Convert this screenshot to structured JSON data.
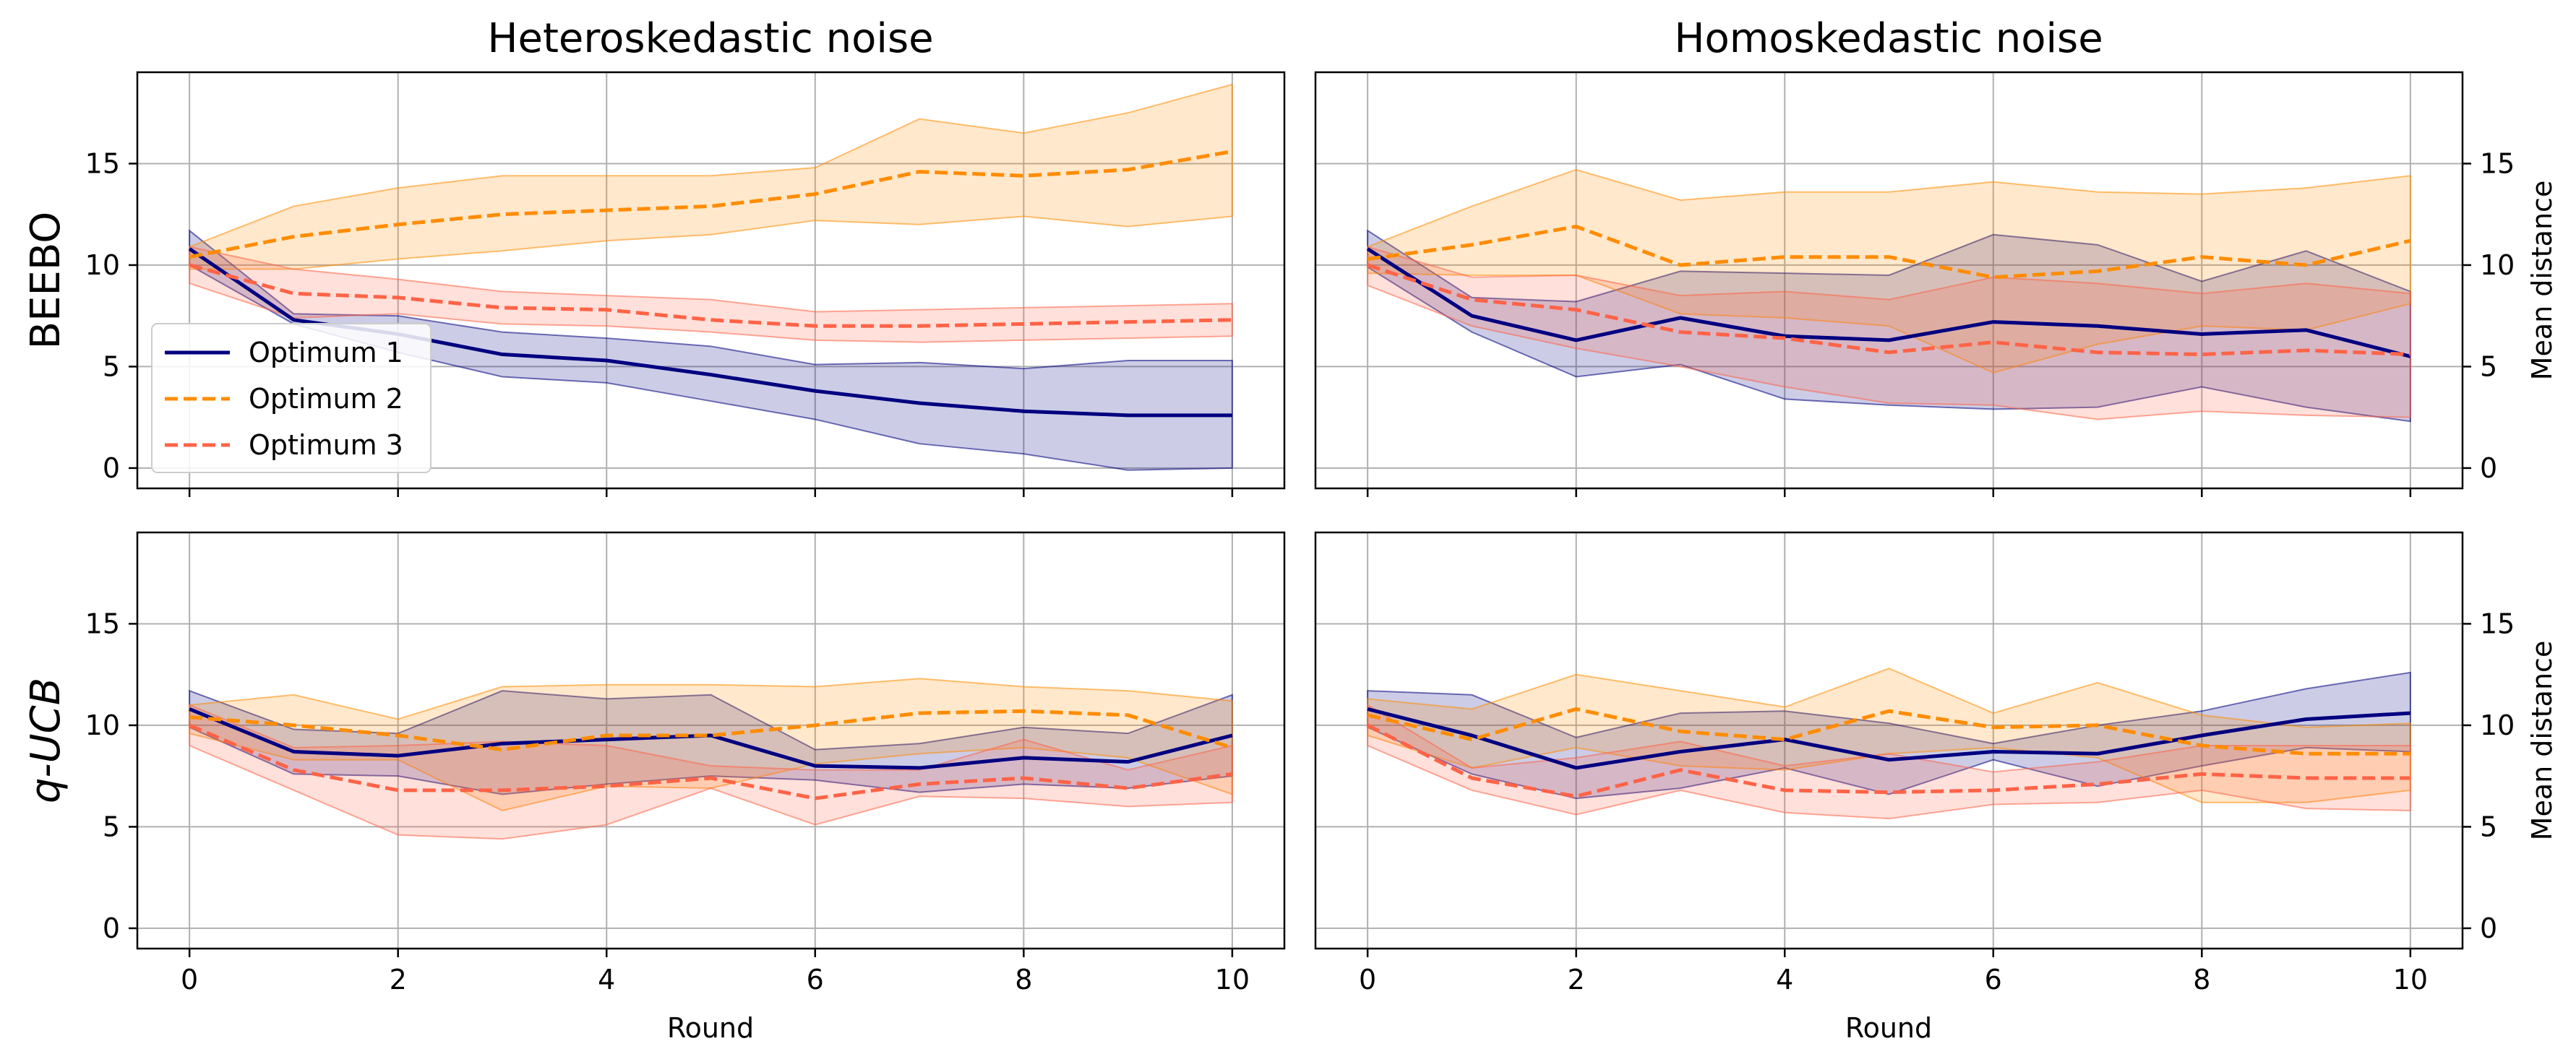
{
  "chart_data": {
    "type": "line",
    "x": [
      0,
      1,
      2,
      3,
      4,
      5,
      6,
      7,
      8,
      9,
      10
    ],
    "xlabel": "Round",
    "ylabel": "Mean distance",
    "xlim": [
      -0.5,
      10.5
    ],
    "ylim": [
      -1,
      19.5
    ],
    "xticks": [
      0,
      2,
      4,
      6,
      8,
      10
    ],
    "yticks": [
      0,
      5,
      10,
      15
    ],
    "grid": true,
    "legend": {
      "location": "lower-left of top-left panel",
      "entries": [
        "Optimum 1",
        "Optimum 2",
        "Optimum 3"
      ]
    },
    "series_style": [
      {
        "name": "Optimum 1",
        "color": "#000080",
        "dash": "solid"
      },
      {
        "name": "Optimum 2",
        "color": "#ff8c00",
        "dash": "dashed"
      },
      {
        "name": "Optimum 3",
        "color": "#ff6347",
        "dash": "dashed"
      }
    ],
    "column_titles": [
      "Heteroskedastic noise",
      "Homoskedastic noise"
    ],
    "row_labels": [
      "BEEBO",
      "q-UCB"
    ],
    "panels": [
      {
        "row": "BEEBO",
        "column": "Heteroskedastic noise",
        "series": [
          {
            "name": "Optimum 1",
            "mean": [
              10.8,
              7.3,
              6.6,
              5.6,
              5.3,
              4.6,
              3.8,
              3.2,
              2.8,
              2.6,
              2.6
            ],
            "lower": [
              10.0,
              7.1,
              5.7,
              4.5,
              4.2,
              3.3,
              2.4,
              1.2,
              0.7,
              -0.1,
              0.0
            ],
            "upper": [
              11.7,
              7.6,
              7.5,
              6.7,
              6.4,
              6.0,
              5.1,
              5.2,
              4.9,
              5.3,
              5.3
            ]
          },
          {
            "name": "Optimum 2",
            "mean": [
              10.4,
              11.4,
              12.0,
              12.5,
              12.7,
              12.9,
              13.5,
              14.6,
              14.4,
              14.7,
              15.6
            ],
            "lower": [
              9.8,
              9.8,
              10.3,
              10.7,
              11.2,
              11.5,
              12.2,
              12.0,
              12.4,
              11.9,
              12.4
            ],
            "upper": [
              10.9,
              12.9,
              13.8,
              14.4,
              14.4,
              14.4,
              14.8,
              17.2,
              16.5,
              17.5,
              18.9
            ]
          },
          {
            "name": "Optimum 3",
            "mean": [
              10.0,
              8.6,
              8.4,
              7.9,
              7.8,
              7.3,
              7.0,
              7.0,
              7.1,
              7.2,
              7.3
            ],
            "lower": [
              9.1,
              7.4,
              7.6,
              7.1,
              7.0,
              6.7,
              6.3,
              6.2,
              6.3,
              6.4,
              6.5
            ],
            "upper": [
              10.9,
              9.8,
              9.3,
              8.7,
              8.5,
              8.3,
              7.7,
              7.8,
              7.9,
              8.0,
              8.1
            ]
          }
        ]
      },
      {
        "row": "BEEBO",
        "column": "Homoskedastic noise",
        "series": [
          {
            "name": "Optimum 1",
            "mean": [
              10.8,
              7.5,
              6.3,
              7.4,
              6.5,
              6.3,
              7.2,
              7.0,
              6.6,
              6.8,
              5.5
            ],
            "lower": [
              9.9,
              6.7,
              4.5,
              5.1,
              3.4,
              3.1,
              2.9,
              3.0,
              4.0,
              3.0,
              2.3
            ],
            "upper": [
              11.7,
              8.4,
              8.2,
              9.7,
              9.6,
              9.5,
              11.5,
              11.0,
              9.2,
              10.7,
              8.7
            ]
          },
          {
            "name": "Optimum 2",
            "mean": [
              10.3,
              11.0,
              11.9,
              10.0,
              10.4,
              10.4,
              9.4,
              9.7,
              10.4,
              10.0,
              11.2
            ],
            "lower": [
              9.6,
              9.5,
              9.5,
              7.6,
              7.4,
              7.0,
              4.7,
              6.1,
              7.0,
              6.8,
              8.1
            ],
            "upper": [
              10.9,
              12.9,
              14.7,
              13.2,
              13.6,
              13.6,
              14.1,
              13.6,
              13.5,
              13.8,
              14.4
            ]
          },
          {
            "name": "Optimum 3",
            "mean": [
              10.0,
              8.3,
              7.8,
              6.7,
              6.4,
              5.7,
              6.2,
              5.7,
              5.6,
              5.8,
              5.6
            ],
            "lower": [
              9.0,
              7.0,
              5.9,
              5.0,
              4.0,
              3.2,
              3.1,
              2.4,
              2.8,
              2.6,
              2.5
            ],
            "upper": [
              10.9,
              9.4,
              9.5,
              8.5,
              8.7,
              8.3,
              9.4,
              9.1,
              8.6,
              9.1,
              8.6
            ]
          }
        ]
      },
      {
        "row": "q-UCB",
        "column": "Heteroskedastic noise",
        "series": [
          {
            "name": "Optimum 1",
            "mean": [
              10.8,
              8.7,
              8.5,
              9.1,
              9.3,
              9.5,
              8.0,
              7.9,
              8.4,
              8.2,
              9.5
            ],
            "lower": [
              9.9,
              7.6,
              7.5,
              6.6,
              7.1,
              7.5,
              7.3,
              6.7,
              7.1,
              6.9,
              7.5
            ],
            "upper": [
              11.7,
              9.8,
              9.6,
              11.7,
              11.3,
              11.5,
              8.8,
              9.1,
              9.9,
              9.6,
              11.5
            ]
          },
          {
            "name": "Optimum 2",
            "mean": [
              10.4,
              10.0,
              9.5,
              8.8,
              9.5,
              9.5,
              10.0,
              10.6,
              10.7,
              10.5,
              8.9
            ],
            "lower": [
              9.6,
              8.3,
              8.3,
              5.8,
              7.0,
              6.9,
              8.1,
              8.6,
              8.9,
              8.4,
              6.6
            ],
            "upper": [
              11.0,
              11.5,
              10.3,
              11.9,
              12.0,
              12.0,
              11.9,
              12.3,
              11.9,
              11.7,
              11.2
            ]
          },
          {
            "name": "Optimum 3",
            "mean": [
              10.0,
              7.8,
              6.8,
              6.8,
              7.0,
              7.4,
              6.4,
              7.1,
              7.4,
              6.9,
              7.6
            ],
            "lower": [
              9.0,
              6.8,
              4.6,
              4.4,
              5.1,
              6.9,
              5.1,
              6.5,
              6.4,
              6.0,
              6.2
            ],
            "upper": [
              11.0,
              8.9,
              9.0,
              9.2,
              9.0,
              8.0,
              7.8,
              7.8,
              9.3,
              7.8,
              9.0
            ]
          }
        ]
      },
      {
        "row": "q-UCB",
        "column": "Homoskedastic noise",
        "series": [
          {
            "name": "Optimum 1",
            "mean": [
              10.8,
              9.5,
              7.9,
              8.7,
              9.3,
              8.3,
              8.7,
              8.6,
              9.5,
              10.3,
              10.6
            ],
            "lower": [
              9.9,
              7.6,
              6.4,
              6.9,
              7.9,
              6.6,
              8.3,
              7.0,
              8.0,
              8.9,
              8.7
            ],
            "upper": [
              11.7,
              11.5,
              9.4,
              10.6,
              10.7,
              10.1,
              9.1,
              10.0,
              10.7,
              11.8,
              12.6
            ]
          },
          {
            "name": "Optimum 2",
            "mean": [
              10.5,
              9.3,
              10.8,
              9.7,
              9.3,
              10.7,
              9.9,
              10.0,
              9.0,
              8.6,
              8.6
            ],
            "lower": [
              9.5,
              7.9,
              8.9,
              8.0,
              7.8,
              8.6,
              8.9,
              8.4,
              6.2,
              6.2,
              6.8
            ],
            "upper": [
              11.3,
              10.8,
              12.5,
              11.7,
              10.9,
              12.8,
              10.6,
              12.1,
              10.5,
              9.9,
              10.1
            ]
          },
          {
            "name": "Optimum 3",
            "mean": [
              10.0,
              7.4,
              6.5,
              7.8,
              6.8,
              6.7,
              6.8,
              7.1,
              7.6,
              7.4,
              7.4
            ],
            "lower": [
              9.0,
              6.8,
              5.6,
              6.8,
              5.7,
              5.4,
              6.1,
              6.2,
              6.8,
              5.9,
              5.8
            ],
            "upper": [
              11.0,
              7.9,
              8.4,
              9.2,
              8.0,
              8.6,
              7.7,
              8.2,
              9.0,
              9.0,
              9.0
            ]
          }
        ]
      }
    ]
  }
}
